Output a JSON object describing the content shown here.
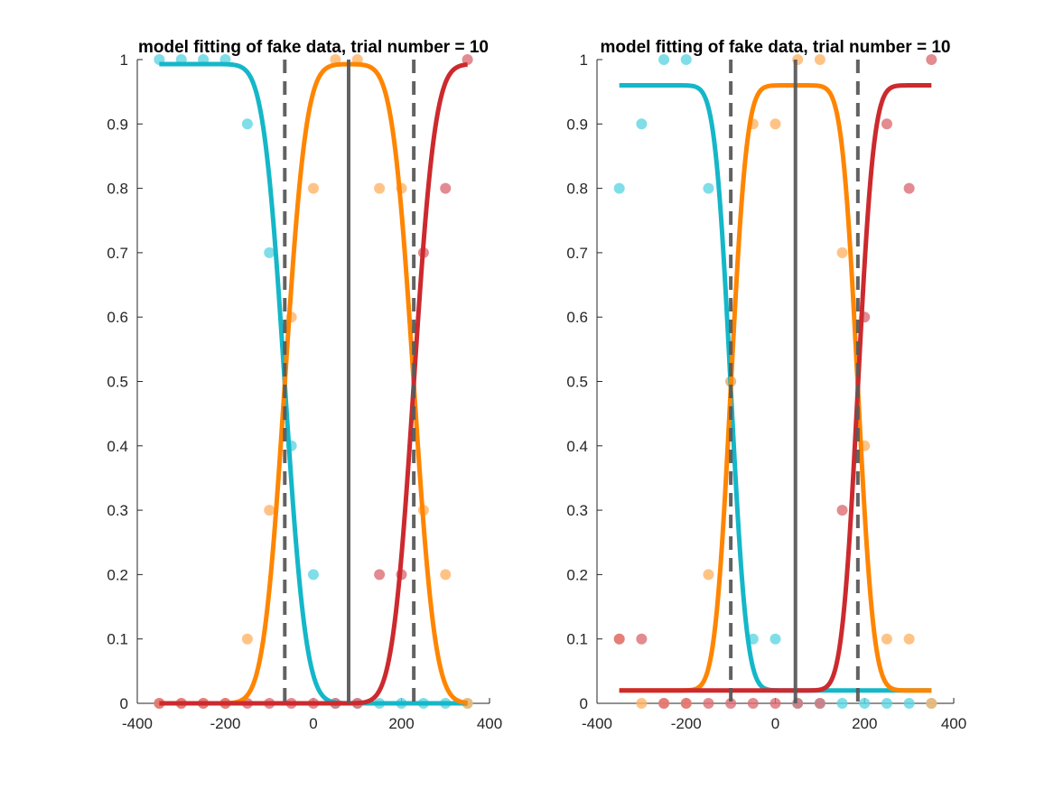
{
  "chart_data": [
    {
      "type": "line",
      "title": "model fitting of fake data, trial number = 10",
      "xlabel": "",
      "ylabel": "",
      "xlim": [
        -400,
        400
      ],
      "ylim": [
        0,
        1
      ],
      "xticks": [
        -400,
        -200,
        0,
        200,
        400
      ],
      "yticks": [
        0,
        0.1,
        0.2,
        0.3,
        0.4,
        0.5,
        0.6,
        0.7,
        0.8,
        0.9,
        1
      ],
      "x_range": [
        -350,
        350
      ],
      "grid": false,
      "legend": "none",
      "vlines": [
        {
          "x": -65,
          "style": "dashed",
          "color": "#5a5a5a"
        },
        {
          "x": 80,
          "style": "solid",
          "color": "#5a5a5a"
        },
        {
          "x": 228,
          "style": "dashed",
          "color": "#5a5a5a"
        }
      ],
      "curves": [
        {
          "kind": "falling",
          "color": "#14b7c8",
          "lapse_low": 0.0,
          "lapse_high": 0.007,
          "mu": -65,
          "sigma": 38
        },
        {
          "kind": "bump",
          "color": "#ff8500",
          "lapse_low": 0.0,
          "lapse_high": 0.007,
          "mu1": -65,
          "mu2": 228,
          "sigma1": 38,
          "sigma2": 38
        },
        {
          "kind": "rising",
          "color": "#cc2a2e",
          "lapse_low": 0.0,
          "lapse_high": 0.007,
          "mu": 228,
          "sigma": 38
        }
      ],
      "points": [
        {
          "color": "#5fd6e2",
          "x": [
            -350,
            -300,
            -250,
            -200,
            -150,
            -100,
            -50,
            0,
            50,
            100,
            150,
            200,
            250,
            300,
            350
          ],
          "y": [
            1,
            1,
            1,
            1,
            0.9,
            0.7,
            0.4,
            0.2,
            0,
            0,
            0,
            0,
            0,
            0,
            0
          ]
        },
        {
          "color": "#ffb468",
          "x": [
            -350,
            -300,
            -250,
            -200,
            -150,
            -100,
            -50,
            0,
            50,
            100,
            150,
            200,
            250,
            300,
            350
          ],
          "y": [
            0,
            0,
            0,
            0,
            0.1,
            0.3,
            0.6,
            0.8,
            1,
            1,
            0.8,
            0.8,
            0.3,
            0.2,
            0
          ]
        },
        {
          "color": "#dc6e74",
          "x": [
            -350,
            -300,
            -250,
            -200,
            -150,
            -100,
            -50,
            0,
            50,
            100,
            150,
            200,
            250,
            300,
            350
          ],
          "y": [
            0,
            0,
            0,
            0,
            0,
            0,
            0,
            0,
            0,
            0,
            0.2,
            0.2,
            0.7,
            0.8,
            1
          ]
        }
      ]
    },
    {
      "type": "line",
      "title": "model fitting of fake data, trial number = 10",
      "xlabel": "",
      "ylabel": "",
      "xlim": [
        -400,
        400
      ],
      "ylim": [
        0,
        1
      ],
      "xticks": [
        -400,
        -200,
        0,
        200,
        400
      ],
      "yticks": [
        0,
        0.1,
        0.2,
        0.3,
        0.4,
        0.5,
        0.6,
        0.7,
        0.8,
        0.9,
        1
      ],
      "x_range": [
        -350,
        350
      ],
      "grid": false,
      "legend": "none",
      "vlines": [
        {
          "x": -100,
          "style": "dashed",
          "color": "#5a5a5a"
        },
        {
          "x": 45,
          "style": "solid",
          "color": "#5a5a5a"
        },
        {
          "x": 185,
          "style": "dashed",
          "color": "#5a5a5a"
        }
      ],
      "curves": [
        {
          "kind": "falling",
          "color": "#14b7c8",
          "lapse_low": 0.02,
          "lapse_high": 0.04,
          "mu": -100,
          "sigma": 28
        },
        {
          "kind": "bump",
          "color": "#ff8500",
          "lapse_low": 0.02,
          "lapse_high": 0.04,
          "mu1": -100,
          "mu2": 185,
          "sigma1": 28,
          "sigma2": 28
        },
        {
          "kind": "rising",
          "color": "#cc2a2e",
          "lapse_low": 0.02,
          "lapse_high": 0.04,
          "mu": 185,
          "sigma": 28
        }
      ],
      "points": [
        {
          "color": "#5fd6e2",
          "x": [
            -350,
            -300,
            -250,
            -200,
            -150,
            -100,
            -50,
            0,
            50,
            100,
            150,
            200,
            250,
            300,
            350
          ],
          "y": [
            0.8,
            0.9,
            1,
            1,
            0.8,
            0.5,
            0.1,
            0.1,
            0,
            0,
            0,
            0,
            0,
            0,
            0
          ]
        },
        {
          "color": "#ffb468",
          "x": [
            -350,
            -300,
            -250,
            -200,
            -150,
            -100,
            -50,
            0,
            50,
            100,
            150,
            200,
            250,
            300,
            350
          ],
          "y": [
            0.1,
            0,
            0,
            0,
            0.2,
            0.5,
            0.9,
            0.9,
            1,
            1,
            0.7,
            0.4,
            0.1,
            0.1,
            0
          ]
        },
        {
          "color": "#dc6e74",
          "x": [
            -350,
            -300,
            -250,
            -200,
            -150,
            -100,
            -50,
            0,
            50,
            100,
            150,
            200,
            250,
            300,
            350
          ],
          "y": [
            0.1,
            0.1,
            0,
            0,
            0,
            0,
            0,
            0,
            0,
            0,
            0.3,
            0.6,
            0.9,
            0.8,
            1
          ]
        }
      ]
    }
  ]
}
